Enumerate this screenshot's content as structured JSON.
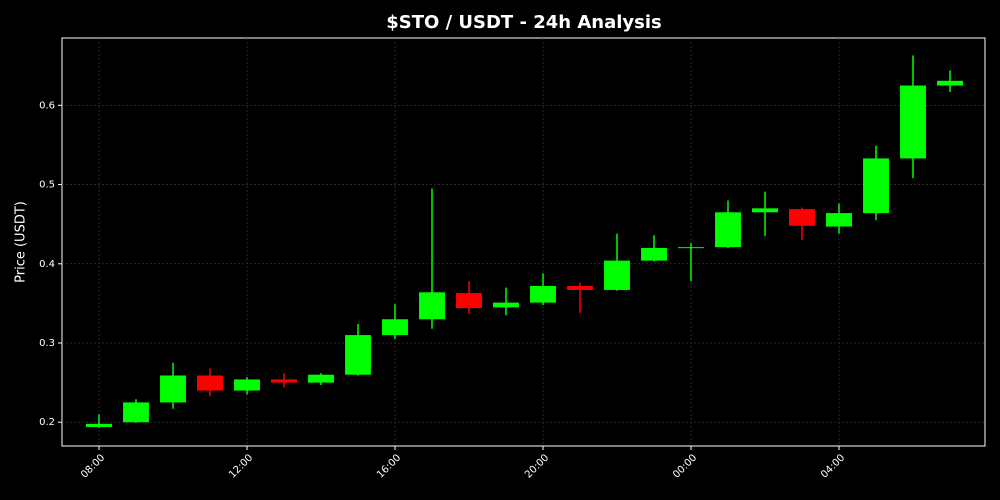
{
  "chart_data": {
    "type": "candlestick",
    "title": "$STO / USDT - 24h Analysis",
    "y_label": "Price (USDT)",
    "categories": [
      "08:00",
      null,
      null,
      null,
      "12:00",
      null,
      null,
      null,
      "16:00",
      null,
      null,
      null,
      "20:00",
      null,
      null,
      null,
      "00:00",
      null,
      null,
      null,
      "04:00",
      null,
      null,
      null
    ],
    "open": [
      0.194,
      0.2,
      0.225,
      0.259,
      0.24,
      0.254,
      0.25,
      0.26,
      0.31,
      0.33,
      0.363,
      0.345,
      0.351,
      0.372,
      0.367,
      0.404,
      0.42,
      0.421,
      0.465,
      0.469,
      0.447,
      0.464,
      0.533,
      0.625
    ],
    "high": [
      0.21,
      0.229,
      0.275,
      0.268,
      0.257,
      0.262,
      0.262,
      0.324,
      0.349,
      0.495,
      0.378,
      0.37,
      0.388,
      0.376,
      0.438,
      0.436,
      0.426,
      0.48,
      0.491,
      0.471,
      0.476,
      0.549,
      0.663,
      0.644
    ],
    "low": [
      0.193,
      0.199,
      0.217,
      0.233,
      0.235,
      0.244,
      0.247,
      0.259,
      0.305,
      0.318,
      0.337,
      0.335,
      0.348,
      0.338,
      0.366,
      0.403,
      0.378,
      0.42,
      0.435,
      0.43,
      0.438,
      0.455,
      0.508,
      0.617
    ],
    "close": [
      0.198,
      0.225,
      0.259,
      0.24,
      0.254,
      0.25,
      0.26,
      0.31,
      0.33,
      0.364,
      0.344,
      0.351,
      0.372,
      0.367,
      0.404,
      0.42,
      0.421,
      0.465,
      0.47,
      0.448,
      0.464,
      0.533,
      0.625,
      0.631
    ],
    "up_color": "#00ff00",
    "down_color": "#ff0000",
    "ylim": [
      0.17,
      0.685
    ],
    "yticks": [
      0.2,
      0.3,
      0.4,
      0.5,
      0.6
    ],
    "grid": true
  }
}
